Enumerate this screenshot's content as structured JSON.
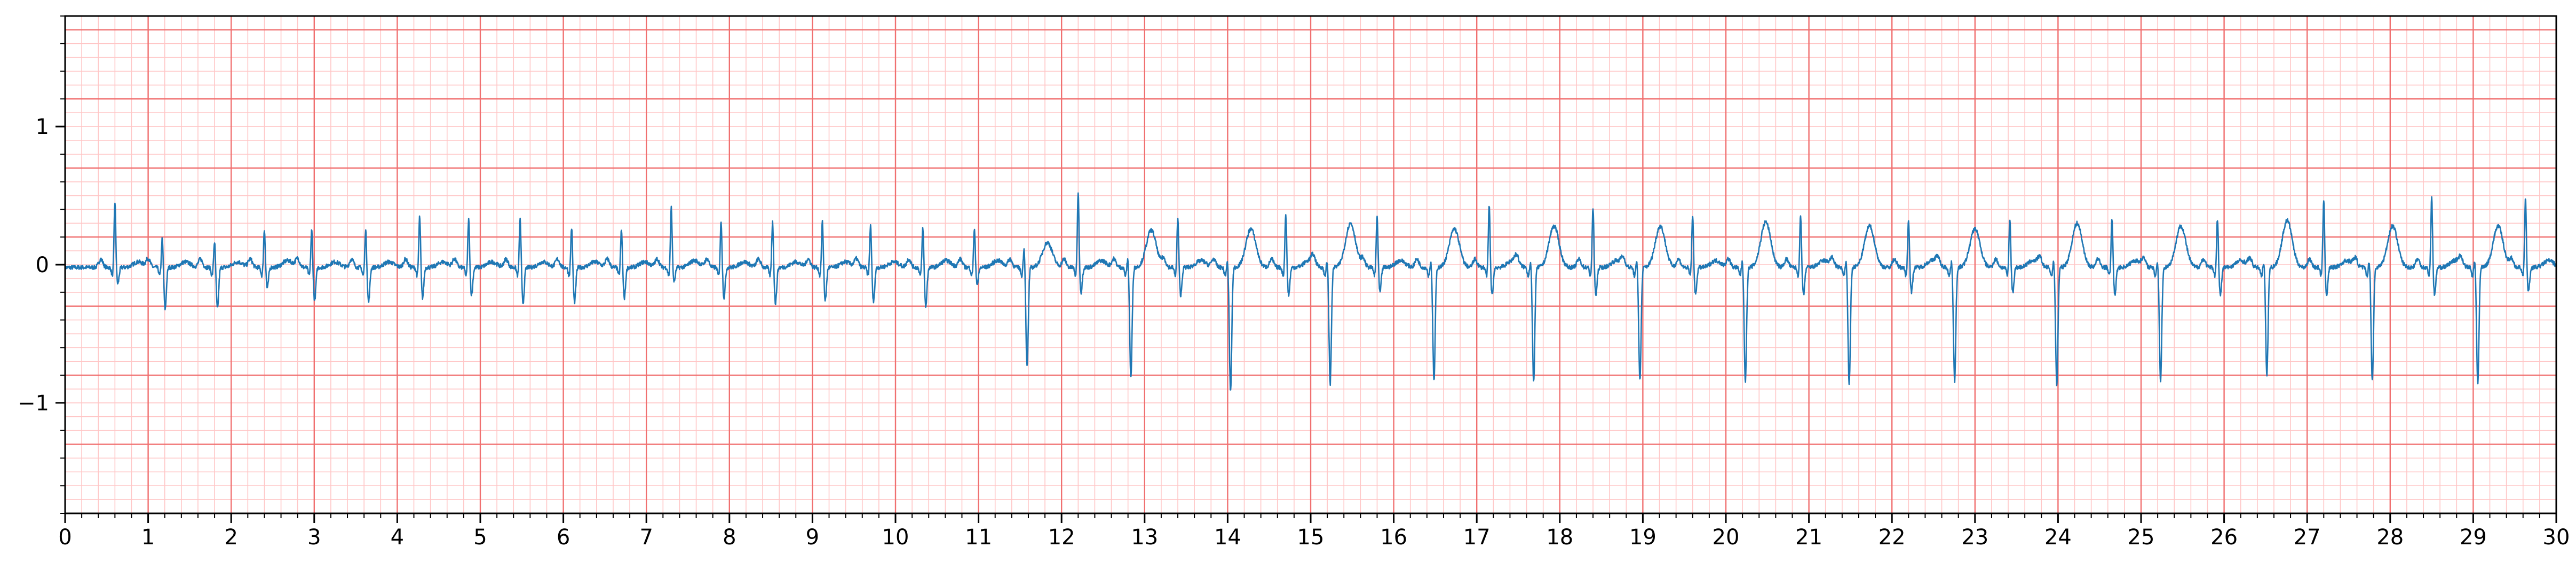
{
  "chart_data": {
    "type": "line",
    "title": "",
    "xlabel": "",
    "ylabel": "",
    "xlim": [
      0,
      30
    ],
    "ylim": [
      -1.8,
      1.8
    ],
    "x_ticks": [
      0,
      1,
      2,
      3,
      4,
      5,
      6,
      7,
      8,
      9,
      10,
      11,
      12,
      13,
      14,
      15,
      16,
      17,
      18,
      19,
      20,
      21,
      22,
      23,
      24,
      25,
      26,
      27,
      28,
      29,
      30
    ],
    "y_ticks": [
      1,
      0,
      -1
    ],
    "y_tick_labels": [
      "1",
      "0",
      "−1"
    ],
    "grid": {
      "major_x": 1.0,
      "major_y": 0.5,
      "minor_x": 0.2,
      "minor_y": 0.1
    },
    "colors": {
      "major_grid": "#f07070",
      "minor_grid": "#ffc6c6",
      "trace": "#1f77b4",
      "axis": "#000000"
    },
    "series": [
      {
        "beats": [
          {
            "t": 0.6,
            "r": 0.48,
            "s": -0.12,
            "tw": 0.04
          },
          {
            "t": 1.17,
            "r": 0.22,
            "s": -0.3,
            "tw": 0.04
          },
          {
            "t": 1.8,
            "r": 0.2,
            "s": -0.3,
            "tw": 0.04
          },
          {
            "t": 2.4,
            "r": 0.28,
            "s": -0.15,
            "tw": 0.05
          },
          {
            "t": 2.97,
            "r": 0.28,
            "s": -0.24,
            "tw": 0.04
          },
          {
            "t": 3.62,
            "r": 0.28,
            "s": -0.25,
            "tw": 0.04
          },
          {
            "t": 4.27,
            "r": 0.38,
            "s": -0.22,
            "tw": 0.04
          },
          {
            "t": 4.86,
            "r": 0.36,
            "s": -0.2,
            "tw": 0.04
          },
          {
            "t": 5.48,
            "r": 0.36,
            "s": -0.26,
            "tw": 0.04
          },
          {
            "t": 6.1,
            "r": 0.3,
            "s": -0.25,
            "tw": 0.04
          },
          {
            "t": 6.7,
            "r": 0.28,
            "s": -0.22,
            "tw": 0.04
          },
          {
            "t": 7.3,
            "r": 0.44,
            "s": -0.1,
            "tw": 0.05
          },
          {
            "t": 7.9,
            "r": 0.34,
            "s": -0.22,
            "tw": 0.04
          },
          {
            "t": 8.52,
            "r": 0.34,
            "s": -0.26,
            "tw": 0.04
          },
          {
            "t": 9.12,
            "r": 0.34,
            "s": -0.24,
            "tw": 0.04
          },
          {
            "t": 9.7,
            "r": 0.32,
            "s": -0.25,
            "tw": 0.04
          },
          {
            "t": 10.33,
            "r": 0.3,
            "s": -0.28,
            "tw": 0.05
          },
          {
            "t": 10.95,
            "r": 0.28,
            "s": -0.12,
            "tw": 0.05
          },
          {
            "t": 11.55,
            "r": 0.16,
            "s": -0.72,
            "tw": 0.18
          },
          {
            "t": 12.2,
            "r": 0.55,
            "s": -0.18,
            "tw": 0.05
          },
          {
            "t": 12.8,
            "r": 0.08,
            "s": -0.8,
            "tw": 0.27
          },
          {
            "t": 13.4,
            "r": 0.36,
            "s": -0.2,
            "tw": 0.05
          },
          {
            "t": 14.0,
            "r": 0.06,
            "s": -0.9,
            "tw": 0.28
          },
          {
            "t": 14.7,
            "r": 0.4,
            "s": -0.2,
            "tw": 0.05
          },
          {
            "t": 15.2,
            "r": 0.06,
            "s": -0.84,
            "tw": 0.32
          },
          {
            "t": 15.8,
            "r": 0.38,
            "s": -0.18,
            "tw": 0.05
          },
          {
            "t": 16.45,
            "r": 0.06,
            "s": -0.82,
            "tw": 0.28
          },
          {
            "t": 17.15,
            "r": 0.46,
            "s": -0.2,
            "tw": 0.05
          },
          {
            "t": 17.65,
            "r": 0.06,
            "s": -0.83,
            "tw": 0.3
          },
          {
            "t": 18.4,
            "r": 0.44,
            "s": -0.2,
            "tw": 0.05
          },
          {
            "t": 18.93,
            "r": 0.06,
            "s": -0.82,
            "tw": 0.3
          },
          {
            "t": 19.6,
            "r": 0.38,
            "s": -0.2,
            "tw": 0.05
          },
          {
            "t": 20.2,
            "r": 0.06,
            "s": -0.82,
            "tw": 0.33
          },
          {
            "t": 20.9,
            "r": 0.38,
            "s": -0.2,
            "tw": 0.05
          },
          {
            "t": 21.45,
            "r": 0.06,
            "s": -0.84,
            "tw": 0.3
          },
          {
            "t": 22.2,
            "r": 0.36,
            "s": -0.18,
            "tw": 0.05
          },
          {
            "t": 22.72,
            "r": 0.06,
            "s": -0.82,
            "tw": 0.28
          },
          {
            "t": 23.42,
            "r": 0.36,
            "s": -0.18,
            "tw": 0.05
          },
          {
            "t": 23.95,
            "r": 0.06,
            "s": -0.85,
            "tw": 0.32
          },
          {
            "t": 24.65,
            "r": 0.36,
            "s": -0.2,
            "tw": 0.05
          },
          {
            "t": 25.2,
            "r": 0.06,
            "s": -0.82,
            "tw": 0.3
          },
          {
            "t": 25.92,
            "r": 0.36,
            "s": -0.2,
            "tw": 0.05
          },
          {
            "t": 26.48,
            "r": 0.06,
            "s": -0.78,
            "tw": 0.34
          },
          {
            "t": 27.2,
            "r": 0.5,
            "s": -0.2,
            "tw": 0.05
          },
          {
            "t": 27.75,
            "r": 0.06,
            "s": -0.82,
            "tw": 0.3
          },
          {
            "t": 28.5,
            "r": 0.52,
            "s": -0.2,
            "tw": 0.05
          },
          {
            "t": 29.02,
            "r": 0.06,
            "s": -0.84,
            "tw": 0.3
          },
          {
            "t": 29.63,
            "r": 0.5,
            "s": -0.18,
            "tw": 0.05
          }
        ]
      }
    ]
  }
}
